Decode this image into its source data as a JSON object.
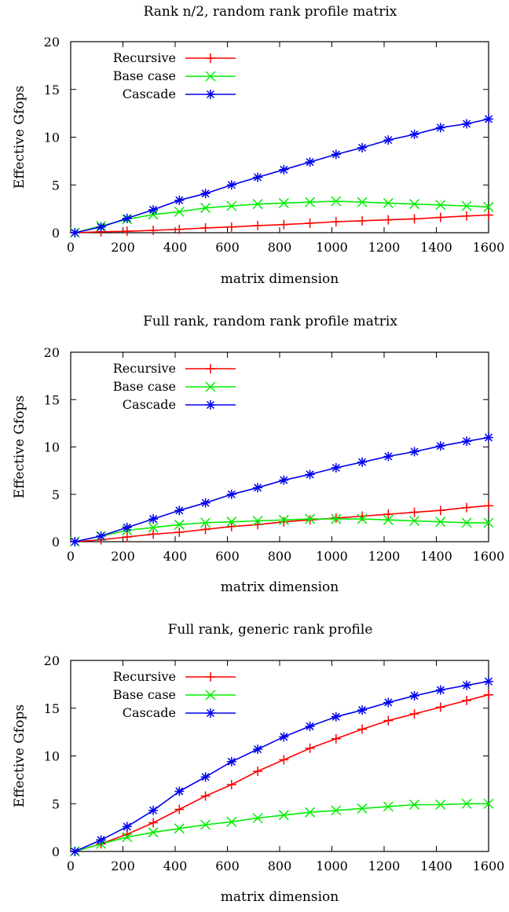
{
  "chart_data": [
    {
      "type": "line",
      "title": "Rank n/2, random rank profile matrix",
      "xlabel": "matrix dimension",
      "ylabel": "Effective Gfops",
      "xlim": [
        0,
        1600
      ],
      "ylim": [
        0,
        20
      ],
      "x_ticks": [
        "0",
        "200",
        "400",
        "600",
        "800",
        "1000",
        "1200",
        "1400",
        "1600"
      ],
      "y_ticks": [
        "0",
        "5",
        "10",
        "15",
        "20"
      ],
      "legend_position": "top-left",
      "series": [
        {
          "name": "Recursive",
          "color": "#ff0000",
          "marker": "plus",
          "x": [
            16,
            116,
            216,
            316,
            416,
            516,
            616,
            716,
            816,
            916,
            1016,
            1116,
            1216,
            1316,
            1416,
            1516,
            1600
          ],
          "y": [
            0,
            0.1,
            0.15,
            0.25,
            0.35,
            0.5,
            0.6,
            0.75,
            0.85,
            1.0,
            1.15,
            1.25,
            1.35,
            1.45,
            1.6,
            1.75,
            1.85
          ]
        },
        {
          "name": "Base case",
          "color": "#00ee00",
          "marker": "cross",
          "x": [
            16,
            116,
            216,
            316,
            416,
            516,
            616,
            716,
            816,
            916,
            1016,
            1116,
            1216,
            1316,
            1416,
            1516,
            1600
          ],
          "y": [
            0,
            0.7,
            1.4,
            1.9,
            2.2,
            2.6,
            2.8,
            3.0,
            3.1,
            3.2,
            3.3,
            3.2,
            3.1,
            3.0,
            2.9,
            2.8,
            2.7
          ]
        },
        {
          "name": "Cascade",
          "color": "#0000ee",
          "marker": "star",
          "x": [
            16,
            116,
            216,
            316,
            416,
            516,
            616,
            716,
            816,
            916,
            1016,
            1116,
            1216,
            1316,
            1416,
            1516,
            1600
          ],
          "y": [
            0,
            0.6,
            1.5,
            2.4,
            3.4,
            4.1,
            5.0,
            5.8,
            6.6,
            7.4,
            8.2,
            8.9,
            9.7,
            10.3,
            11.0,
            11.4,
            11.9
          ]
        }
      ]
    },
    {
      "type": "line",
      "title": "Full rank, random rank profile matrix",
      "xlabel": "matrix dimension",
      "ylabel": "Effective Gfops",
      "xlim": [
        0,
        1600
      ],
      "ylim": [
        0,
        20
      ],
      "x_ticks": [
        "0",
        "200",
        "400",
        "600",
        "800",
        "1000",
        "1200",
        "1400",
        "1600"
      ],
      "y_ticks": [
        "0",
        "5",
        "10",
        "15",
        "20"
      ],
      "legend_position": "top-left",
      "series": [
        {
          "name": "Recursive",
          "color": "#ff0000",
          "marker": "plus",
          "x": [
            16,
            116,
            216,
            316,
            416,
            516,
            616,
            716,
            816,
            916,
            1016,
            1116,
            1216,
            1316,
            1416,
            1516,
            1600
          ],
          "y": [
            0,
            0.2,
            0.5,
            0.8,
            1.0,
            1.3,
            1.6,
            1.8,
            2.1,
            2.3,
            2.5,
            2.7,
            2.9,
            3.1,
            3.3,
            3.6,
            3.8
          ]
        },
        {
          "name": "Base case",
          "color": "#00ee00",
          "marker": "cross",
          "x": [
            16,
            116,
            216,
            316,
            416,
            516,
            616,
            716,
            816,
            916,
            1016,
            1116,
            1216,
            1316,
            1416,
            1516,
            1600
          ],
          "y": [
            0,
            0.6,
            1.2,
            1.5,
            1.8,
            2.0,
            2.1,
            2.2,
            2.3,
            2.4,
            2.4,
            2.4,
            2.3,
            2.2,
            2.1,
            2.0,
            2.0
          ]
        },
        {
          "name": "Cascade",
          "color": "#0000ee",
          "marker": "star",
          "x": [
            16,
            116,
            216,
            316,
            416,
            516,
            616,
            716,
            816,
            916,
            1016,
            1116,
            1216,
            1316,
            1416,
            1516,
            1600
          ],
          "y": [
            0,
            0.6,
            1.5,
            2.4,
            3.3,
            4.1,
            5.0,
            5.7,
            6.5,
            7.1,
            7.8,
            8.4,
            9.0,
            9.5,
            10.1,
            10.6,
            11.0
          ]
        }
      ]
    },
    {
      "type": "line",
      "title": "Full rank, generic rank profile",
      "xlabel": "matrix dimension",
      "ylabel": "Effective Gfops",
      "xlim": [
        0,
        1600
      ],
      "ylim": [
        0,
        20
      ],
      "x_ticks": [
        "0",
        "200",
        "400",
        "600",
        "800",
        "1000",
        "1200",
        "1400",
        "1600"
      ],
      "y_ticks": [
        "0",
        "5",
        "10",
        "15",
        "20"
      ],
      "legend_position": "top-left",
      "series": [
        {
          "name": "Recursive",
          "color": "#ff0000",
          "marker": "plus",
          "x": [
            16,
            116,
            216,
            316,
            416,
            516,
            616,
            716,
            816,
            916,
            1016,
            1116,
            1216,
            1316,
            1416,
            1516,
            1600
          ],
          "y": [
            0,
            0.8,
            1.8,
            3.0,
            4.4,
            5.8,
            7.0,
            8.4,
            9.6,
            10.8,
            11.8,
            12.8,
            13.7,
            14.4,
            15.1,
            15.8,
            16.4
          ]
        },
        {
          "name": "Base case",
          "color": "#00ee00",
          "marker": "cross",
          "x": [
            16,
            116,
            216,
            316,
            416,
            516,
            616,
            716,
            816,
            916,
            1016,
            1116,
            1216,
            1316,
            1416,
            1516,
            1600
          ],
          "y": [
            0,
            0.8,
            1.5,
            2.0,
            2.4,
            2.8,
            3.1,
            3.5,
            3.8,
            4.1,
            4.3,
            4.5,
            4.7,
            4.9,
            4.9,
            5.0,
            5.0
          ]
        },
        {
          "name": "Cascade",
          "color": "#0000ee",
          "marker": "star",
          "x": [
            16,
            116,
            216,
            316,
            416,
            516,
            616,
            716,
            816,
            916,
            1016,
            1116,
            1216,
            1316,
            1416,
            1516,
            1600
          ],
          "y": [
            0,
            1.2,
            2.6,
            4.3,
            6.3,
            7.8,
            9.4,
            10.7,
            12.0,
            13.1,
            14.1,
            14.8,
            15.6,
            16.3,
            16.9,
            17.4,
            17.8
          ]
        }
      ]
    }
  ]
}
